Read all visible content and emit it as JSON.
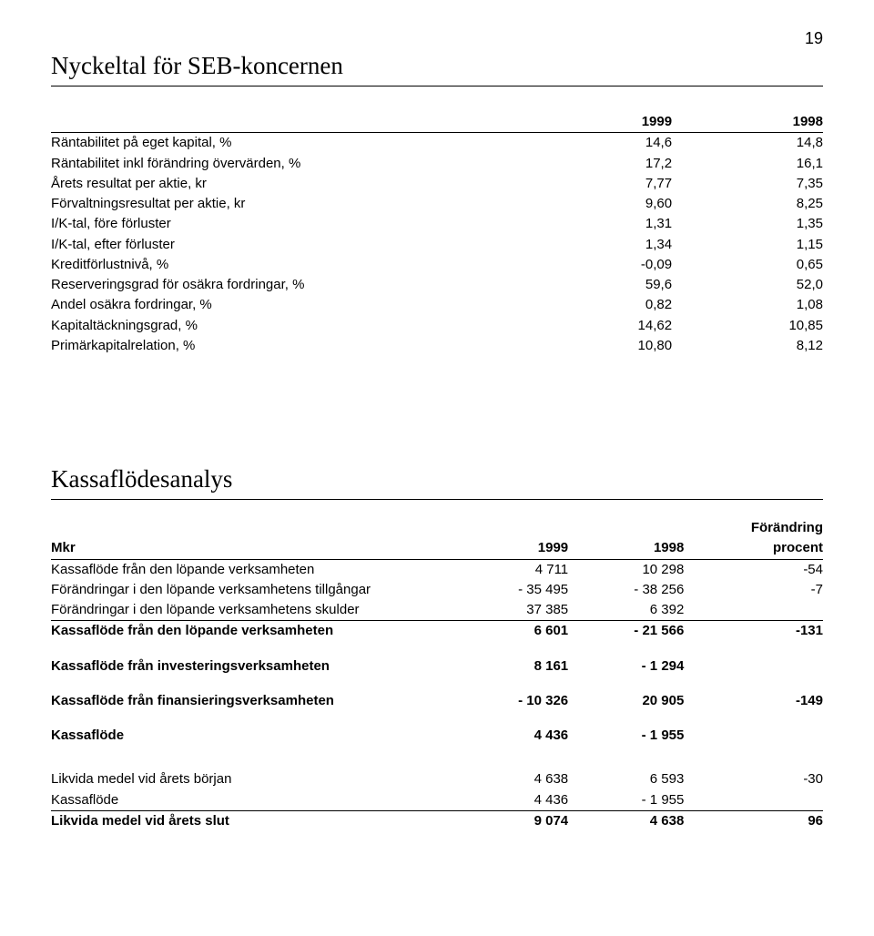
{
  "page_number": "19",
  "section1": {
    "title": "Nyckeltal för SEB-koncernen",
    "columns": [
      "",
      "1999",
      "1998"
    ],
    "rows": [
      {
        "label": "Räntabilitet på eget kapital, %",
        "v1": "14,6",
        "v2": "14,8"
      },
      {
        "label": "Räntabilitet inkl förändring övervärden, %",
        "v1": "17,2",
        "v2": "16,1"
      },
      {
        "label": "Årets resultat per aktie, kr",
        "v1": "7,77",
        "v2": "7,35"
      },
      {
        "label": "Förvaltningsresultat per aktie, kr",
        "v1": "9,60",
        "v2": "8,25"
      },
      {
        "label": "I/K-tal, före förluster",
        "v1": "1,31",
        "v2": "1,35"
      },
      {
        "label": "I/K-tal, efter förluster",
        "v1": "1,34",
        "v2": "1,15"
      },
      {
        "label": "Kreditförlustnivå, %",
        "v1": "-0,09",
        "v2": "0,65"
      },
      {
        "label": "Reserveringsgrad för osäkra fordringar, %",
        "v1": "59,6",
        "v2": "52,0"
      },
      {
        "label": "Andel osäkra fordringar, %",
        "v1": "0,82",
        "v2": "1,08"
      },
      {
        "label": "Kapitaltäckningsgrad, %",
        "v1": "14,62",
        "v2": "10,85"
      },
      {
        "label": "Primärkapitalrelation, %",
        "v1": "10,80",
        "v2": "8,12"
      }
    ]
  },
  "section2": {
    "title": "Kassaflödesanalys",
    "header_line1": {
      "c1": "Mkr",
      "c2": "1999",
      "c3": "1998",
      "c4_top": "Förändring",
      "c4_bot": "procent"
    },
    "group1": [
      {
        "label": "Kassaflöde från den löpande verksamheten",
        "v1": "4 711",
        "v2": "10 298",
        "v3": "-54",
        "underline": false
      },
      {
        "label": "Förändringar i den löpande verksamhetens tillgångar",
        "v1": "- 35 495",
        "v2": "- 38 256",
        "v3": "-7",
        "underline": false
      },
      {
        "label": "Förändringar i den löpande verksamhetens skulder",
        "v1": "37 385",
        "v2": "6 392",
        "v3": "",
        "underline": true
      }
    ],
    "group1_total": {
      "label": "Kassaflöde från den löpande verksamheten",
      "v1": "6 601",
      "v2": "- 21 566",
      "v3": "-131"
    },
    "row_invest": {
      "label": "Kassaflöde från investeringsverksamheten",
      "v1": "8 161",
      "v2": "- 1 294",
      "v3": ""
    },
    "row_finans": {
      "label": "Kassaflöde från finansieringsverksamheten",
      "v1": "- 10 326",
      "v2": "20 905",
      "v3": "-149"
    },
    "row_kassaflode": {
      "label": "Kassaflöde",
      "v1": "4 436",
      "v2": "- 1 955",
      "v3": ""
    },
    "group3": [
      {
        "label": "Likvida medel vid årets början",
        "v1": "4 638",
        "v2": "6 593",
        "v3": "-30",
        "underline": false
      },
      {
        "label": "Kassaflöde",
        "v1": "4 436",
        "v2": "- 1 955",
        "v3": "",
        "underline": true
      }
    ],
    "group3_total": {
      "label": "Likvida medel vid årets slut",
      "v1": "9 074",
      "v2": "4 638",
      "v3": "96"
    }
  }
}
